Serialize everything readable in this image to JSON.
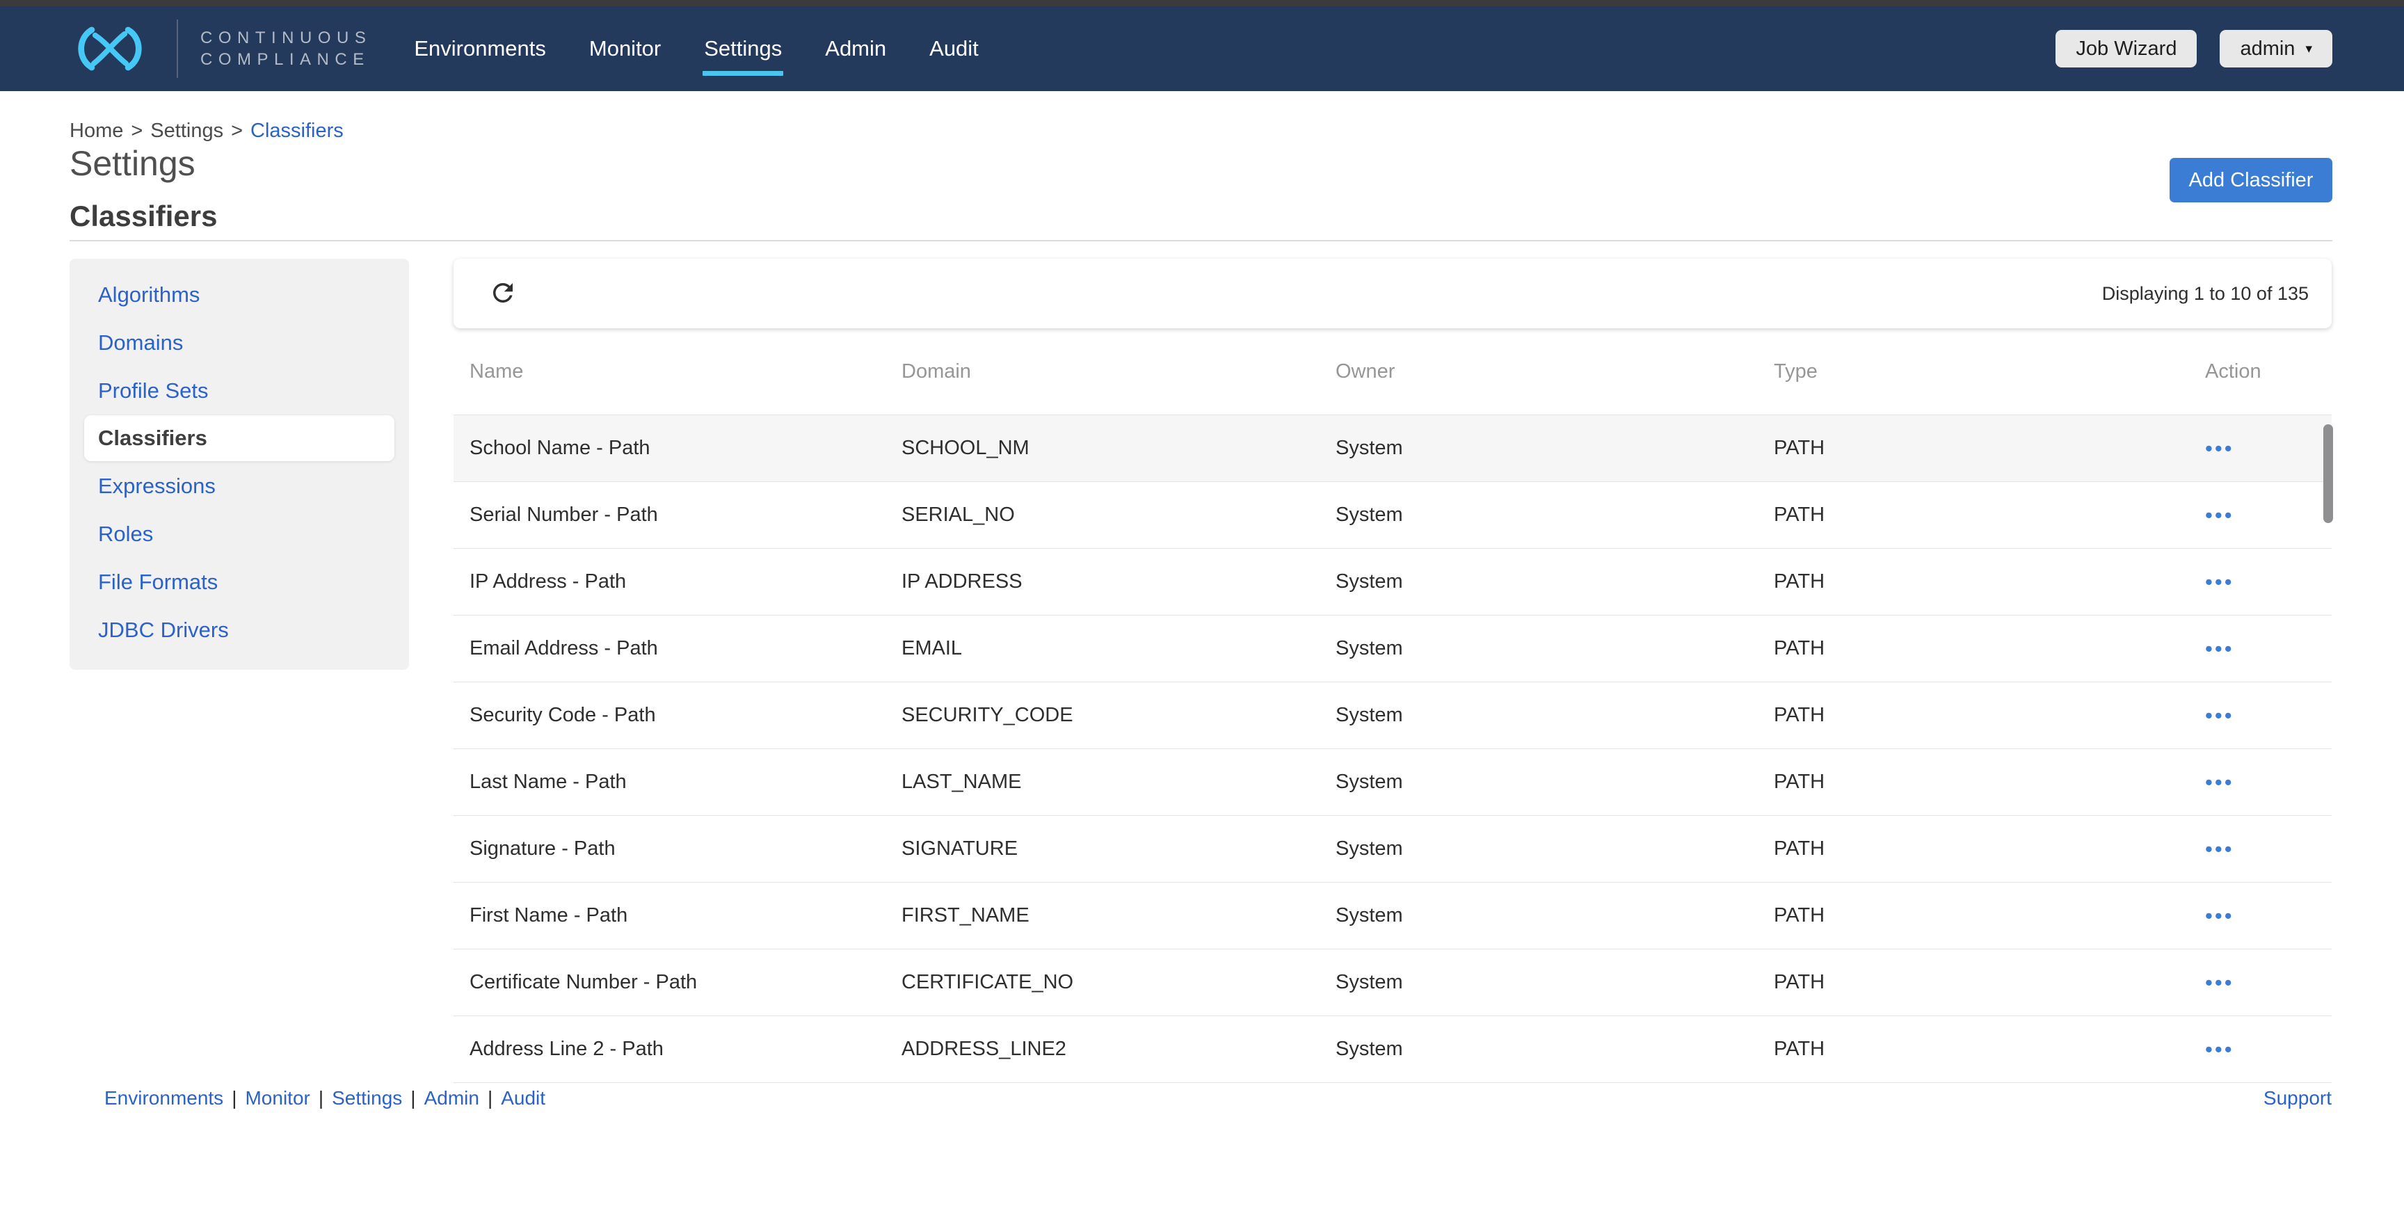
{
  "colors": {
    "navy": "#243a5c",
    "strip": "#3b3b3d",
    "cyan": "#4cc5ee",
    "linkBlue": "#2b62c9",
    "buttonBlue": "#3b7cd5",
    "btnGray": "#e8e8e8",
    "sidebarBg": "#f1f1f2",
    "rowLine": "#e4e4e4",
    "rowHighlight": "#f6f6f7"
  },
  "navbar": {
    "brand": {
      "line1": "CONTINUOUS",
      "line2": "COMPLIANCE"
    },
    "items": [
      {
        "label": "Environments",
        "active": false
      },
      {
        "label": "Monitor",
        "active": false
      },
      {
        "label": "Settings",
        "active": true
      },
      {
        "label": "Admin",
        "active": false
      },
      {
        "label": "Audit",
        "active": false
      }
    ],
    "job_wizard_label": "Job Wizard",
    "user_menu_label": "admin"
  },
  "breadcrumb": {
    "separator": ">",
    "items": [
      "Home",
      "Settings",
      "Classifiers"
    ]
  },
  "page": {
    "title": "Settings",
    "section_title": "Classifiers",
    "add_button_label": "Add Classifier"
  },
  "sidebar": {
    "items": [
      {
        "label": "Algorithms",
        "active": false
      },
      {
        "label": "Domains",
        "active": false
      },
      {
        "label": "Profile Sets",
        "active": false
      },
      {
        "label": "Classifiers",
        "active": true
      },
      {
        "label": "Expressions",
        "active": false
      },
      {
        "label": "Roles",
        "active": false
      },
      {
        "label": "File Formats",
        "active": false
      },
      {
        "label": "JDBC Drivers",
        "active": false
      }
    ]
  },
  "table": {
    "displaying_text": "Displaying 1 to 10 of 135",
    "columns": [
      "Name",
      "Domain",
      "Owner",
      "Type",
      "Action"
    ],
    "rows": [
      {
        "name": "School Name - Path",
        "domain": "SCHOOL_NM",
        "owner": "System",
        "type": "PATH",
        "highlighted": true
      },
      {
        "name": "Serial Number - Path",
        "domain": "SERIAL_NO",
        "owner": "System",
        "type": "PATH",
        "highlighted": false
      },
      {
        "name": "IP Address - Path",
        "domain": "IP ADDRESS",
        "owner": "System",
        "type": "PATH",
        "highlighted": false
      },
      {
        "name": "Email Address - Path",
        "domain": "EMAIL",
        "owner": "System",
        "type": "PATH",
        "highlighted": false
      },
      {
        "name": "Security Code - Path",
        "domain": "SECURITY_CODE",
        "owner": "System",
        "type": "PATH",
        "highlighted": false
      },
      {
        "name": "Last Name - Path",
        "domain": "LAST_NAME",
        "owner": "System",
        "type": "PATH",
        "highlighted": false
      },
      {
        "name": "Signature - Path",
        "domain": "SIGNATURE",
        "owner": "System",
        "type": "PATH",
        "highlighted": false
      },
      {
        "name": "First Name - Path",
        "domain": "FIRST_NAME",
        "owner": "System",
        "type": "PATH",
        "highlighted": false
      },
      {
        "name": "Certificate Number - Path",
        "domain": "CERTIFICATE_NO",
        "owner": "System",
        "type": "PATH",
        "highlighted": false
      },
      {
        "name": "Address Line 2 - Path",
        "domain": "ADDRESS_LINE2",
        "owner": "System",
        "type": "PATH",
        "highlighted": false
      }
    ]
  },
  "icons": {
    "ellipsis": "•••",
    "caret_down": "▾"
  },
  "footer": {
    "separator": "|",
    "links": [
      "Environments",
      "Monitor",
      "Settings",
      "Admin",
      "Audit"
    ],
    "support_label": "Support"
  }
}
